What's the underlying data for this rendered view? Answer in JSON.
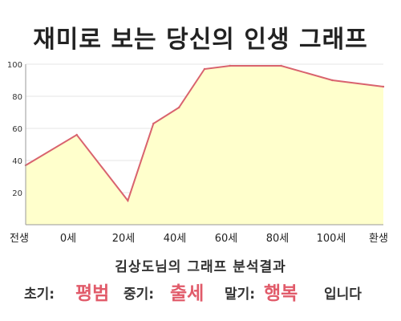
{
  "title": "재미로 보는 당신의 인생 그래프",
  "subtitle": "김상도님의 그래프 분석결과",
  "result": {
    "early_label": "초기:",
    "early_value": "평범",
    "mid_label": "중기:",
    "mid_value": "출세",
    "late_label": "말기:",
    "late_value": "행복",
    "suffix": "입니다"
  },
  "colors": {
    "line": "#d9636e",
    "area": "#ffffcc",
    "accent": "#e15b6a",
    "grid": "#e6e6e6"
  },
  "chart_data": {
    "type": "area",
    "x": [
      "전생",
      "0세",
      "20세",
      "40세",
      "60세",
      "80세",
      "100세",
      "환생"
    ],
    "xlabel": "",
    "ylabel": "",
    "ylim": [
      0,
      100
    ],
    "yticks": [
      20,
      40,
      60,
      80,
      100
    ],
    "grid": true,
    "points": [
      {
        "age": -20,
        "value": 37
      },
      {
        "age": 0,
        "value": 56
      },
      {
        "age": 20,
        "value": 15
      },
      {
        "age": 30,
        "value": 63
      },
      {
        "age": 40,
        "value": 73
      },
      {
        "age": 50,
        "value": 97
      },
      {
        "age": 60,
        "value": 99
      },
      {
        "age": 80,
        "value": 99
      },
      {
        "age": 100,
        "value": 90
      },
      {
        "age": 120,
        "value": 86
      }
    ]
  }
}
